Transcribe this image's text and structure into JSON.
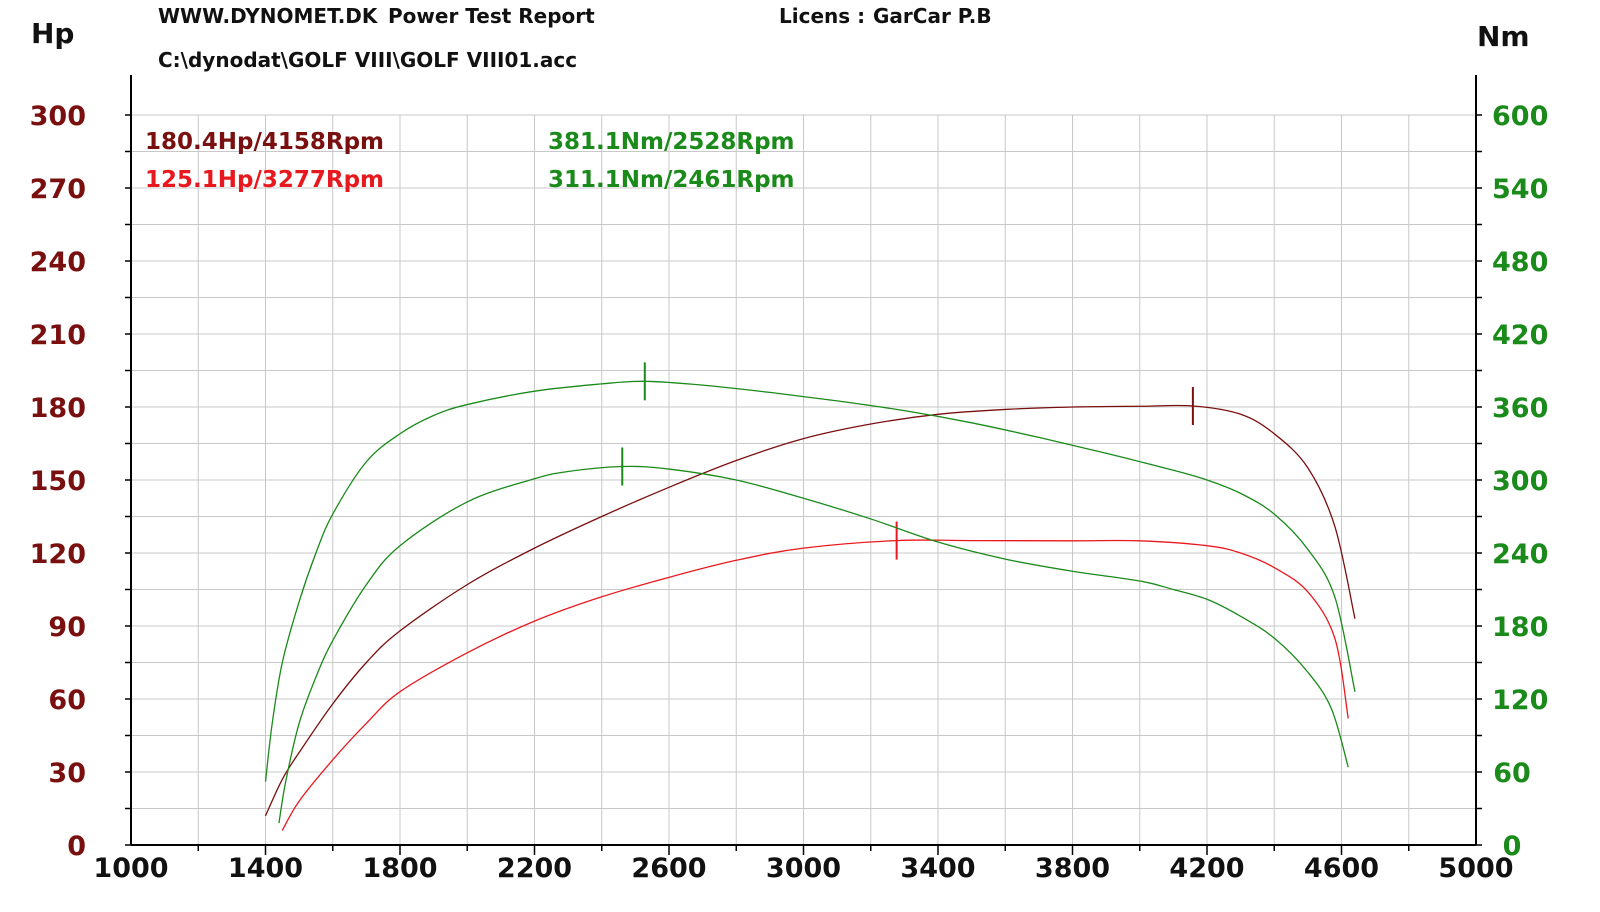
{
  "header": {
    "site": "WWW.DYNOMET.DK",
    "report": "Power Test Report",
    "license_label": "Licens :",
    "license_value": "GarCar P.B",
    "file_path": "C:\\dynodat\\GOLF VIII\\GOLF VIII01.acc"
  },
  "colors": {
    "power_run1": "#7a0f0f",
    "power_run2": "#e8191e",
    "torque": "#1a8a1a",
    "axis": "#000000",
    "grid": "#c8c8c8"
  },
  "chart_data": {
    "type": "line",
    "x_axis": {
      "min": 1000,
      "max": 5000,
      "ticks": [
        1000,
        1400,
        1800,
        2200,
        2600,
        3000,
        3400,
        3800,
        4200,
        4600,
        5000
      ],
      "unit": ""
    },
    "y_left": {
      "label": "Hp",
      "min": 0,
      "max": 300,
      "ticks": [
        0,
        30,
        60,
        90,
        120,
        150,
        180,
        210,
        240,
        270,
        300
      ]
    },
    "y_right": {
      "label": "Nm",
      "min": 0,
      "max": 600,
      "ticks": [
        0,
        60,
        120,
        180,
        240,
        300,
        360,
        420,
        480,
        540,
        600
      ]
    },
    "grid": true,
    "annotations": {
      "power1": "180.4Hp/4158Rpm",
      "power2": "125.1Hp/3277Rpm",
      "torque1": "381.1Nm/2528Rpm",
      "torque2": "311.1Nm/2461Rpm"
    },
    "series": [
      {
        "axis": "left",
        "color_key": "power_run1",
        "x": [
          1400,
          1450,
          1500,
          1600,
          1700,
          1800,
          2000,
          2200,
          2400,
          2600,
          2800,
          3000,
          3200,
          3400,
          3600,
          3800,
          4000,
          4158,
          4300,
          4400,
          4500,
          4580,
          4640
        ],
        "y": [
          12,
          27,
          38,
          58,
          75,
          88,
          107,
          122,
          135,
          147,
          158,
          167,
          173,
          177,
          179,
          180,
          180.3,
          180.4,
          177,
          169,
          155,
          131,
          93
        ],
        "peak": {
          "x": 4158,
          "y": 180.4
        }
      },
      {
        "axis": "left",
        "color_key": "power_run2",
        "x": [
          1450,
          1500,
          1600,
          1700,
          1800,
          2000,
          2200,
          2400,
          2600,
          2800,
          3000,
          3277,
          3500,
          3800,
          4000,
          4200,
          4300,
          4400,
          4500,
          4580,
          4620
        ],
        "y": [
          6,
          18,
          35,
          50,
          63,
          79,
          92,
          102,
          110,
          117,
          122,
          125.1,
          125.1,
          125,
          125,
          123,
          120,
          114,
          104,
          85,
          52
        ],
        "peak": {
          "x": 3277,
          "y": 125.1
        }
      },
      {
        "axis": "right",
        "color_key": "torque",
        "x": [
          1400,
          1420,
          1450,
          1500,
          1550,
          1600,
          1700,
          1800,
          1900,
          2000,
          2200,
          2400,
          2528,
          2700,
          2900,
          3100,
          3300,
          3500,
          3700,
          3900,
          4100,
          4200,
          4300,
          4400,
          4500,
          4580,
          4640
        ],
        "y": [
          52,
          100,
          150,
          200,
          240,
          272,
          315,
          338,
          353,
          362,
          373,
          379,
          381.1,
          378,
          372,
          365,
          357,
          347,
          335,
          322,
          308,
          300,
          289,
          272,
          243,
          204,
          126
        ],
        "peak": {
          "x": 2528,
          "y": 381.1
        }
      },
      {
        "axis": "right",
        "color_key": "torque",
        "x": [
          1440,
          1460,
          1500,
          1550,
          1600,
          1700,
          1800,
          2000,
          2200,
          2300,
          2461,
          2600,
          2800,
          3000,
          3200,
          3400,
          3600,
          3800,
          4000,
          4100,
          4200,
          4300,
          4400,
          4500,
          4570,
          4620
        ],
        "y": [
          18,
          52,
          100,
          138,
          168,
          214,
          246,
          282,
          301,
          307,
          311.1,
          309,
          300,
          285,
          268,
          249,
          235,
          225,
          217,
          210,
          202,
          188,
          170,
          142,
          112,
          64
        ],
        "peak": {
          "x": 2461,
          "y": 311.1
        }
      }
    ]
  }
}
